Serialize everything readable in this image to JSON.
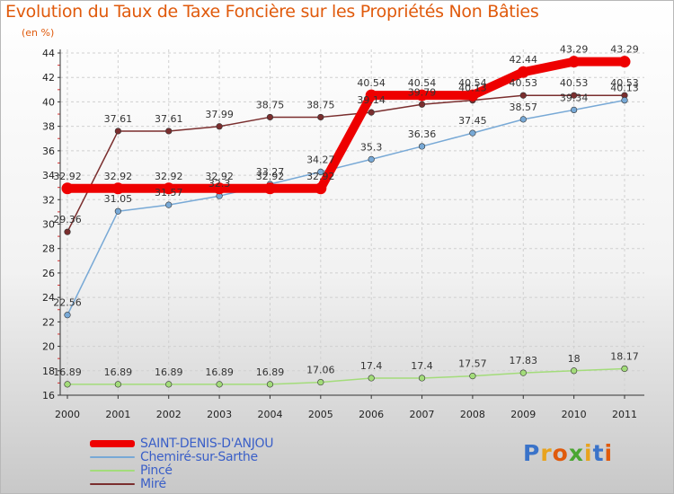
{
  "title": "Evolution du Taux de Taxe Foncière sur les Propriétés Non Bâties",
  "unit_label": "(en %)",
  "logo": {
    "letters": [
      "P",
      "r",
      "o",
      "x",
      "i",
      "t",
      "i"
    ],
    "colors": [
      "#3a73c9",
      "#e8a31e",
      "#e05a0c",
      "#4aa632",
      "#e8a31e",
      "#3a73c9",
      "#e05a0c"
    ]
  },
  "chart_data": {
    "type": "line",
    "title": "Evolution du Taux de Taxe Foncière sur les Propriétés Non Bâties",
    "ylabel": "(en %)",
    "xlabel": "",
    "categories": [
      "2000",
      "2001",
      "2002",
      "2003",
      "2004",
      "2005",
      "2006",
      "2007",
      "2008",
      "2009",
      "2010",
      "2011"
    ],
    "ylim": [
      16,
      44
    ],
    "yticks": [
      16,
      18,
      20,
      22,
      24,
      26,
      28,
      30,
      32,
      34,
      36,
      38,
      40,
      42,
      44
    ],
    "grid": true,
    "legend_position": "bottom-left",
    "series": [
      {
        "name": "SAINT-DENIS-D'ANJOU",
        "color": "#ee0000",
        "width": 10,
        "values": [
          32.92,
          32.92,
          32.92,
          32.92,
          32.92,
          32.92,
          40.54,
          40.54,
          40.54,
          42.44,
          43.29,
          43.29
        ],
        "labels": [
          "32.92",
          "32.92",
          "32.92",
          "32.92",
          "32.92",
          "32.92",
          "40.54",
          "40.54",
          "40.54",
          "42.44",
          "43.29",
          "43.29"
        ]
      },
      {
        "name": "Chemiré-sur-Sarthe",
        "color": "#78a9d6",
        "width": 1.5,
        "values": [
          22.56,
          31.05,
          31.57,
          32.3,
          33.27,
          34.27,
          35.3,
          36.36,
          37.45,
          38.57,
          39.34,
          40.13
        ],
        "labels": [
          "22.56",
          "31.05",
          "31.57",
          "32.3",
          "33.27",
          "34.27",
          "35.3",
          "36.36",
          "37.45",
          "38.57",
          "39.34",
          "40.13"
        ]
      },
      {
        "name": "Pincé",
        "color": "#a3dc7a",
        "width": 1.5,
        "values": [
          16.89,
          16.89,
          16.89,
          16.89,
          16.89,
          17.06,
          17.4,
          17.4,
          17.57,
          17.83,
          18,
          18.17
        ],
        "labels": [
          "16.89",
          "16.89",
          "16.89",
          "16.89",
          "16.89",
          "17.06",
          "17.4",
          "17.4",
          "17.57",
          "17.83",
          "18",
          "18.17"
        ]
      },
      {
        "name": "Miré",
        "color": "#7a2e2e",
        "width": 1.5,
        "values": [
          29.36,
          37.61,
          37.61,
          37.99,
          38.75,
          38.75,
          39.14,
          39.79,
          40.13,
          40.53,
          40.53,
          40.53
        ],
        "labels": [
          "29.36",
          "37.61",
          "37.61",
          "37.99",
          "38.75",
          "38.75",
          "39.14",
          "39.79",
          "40.13",
          "40.53",
          "40.53",
          "40.53"
        ]
      }
    ]
  }
}
